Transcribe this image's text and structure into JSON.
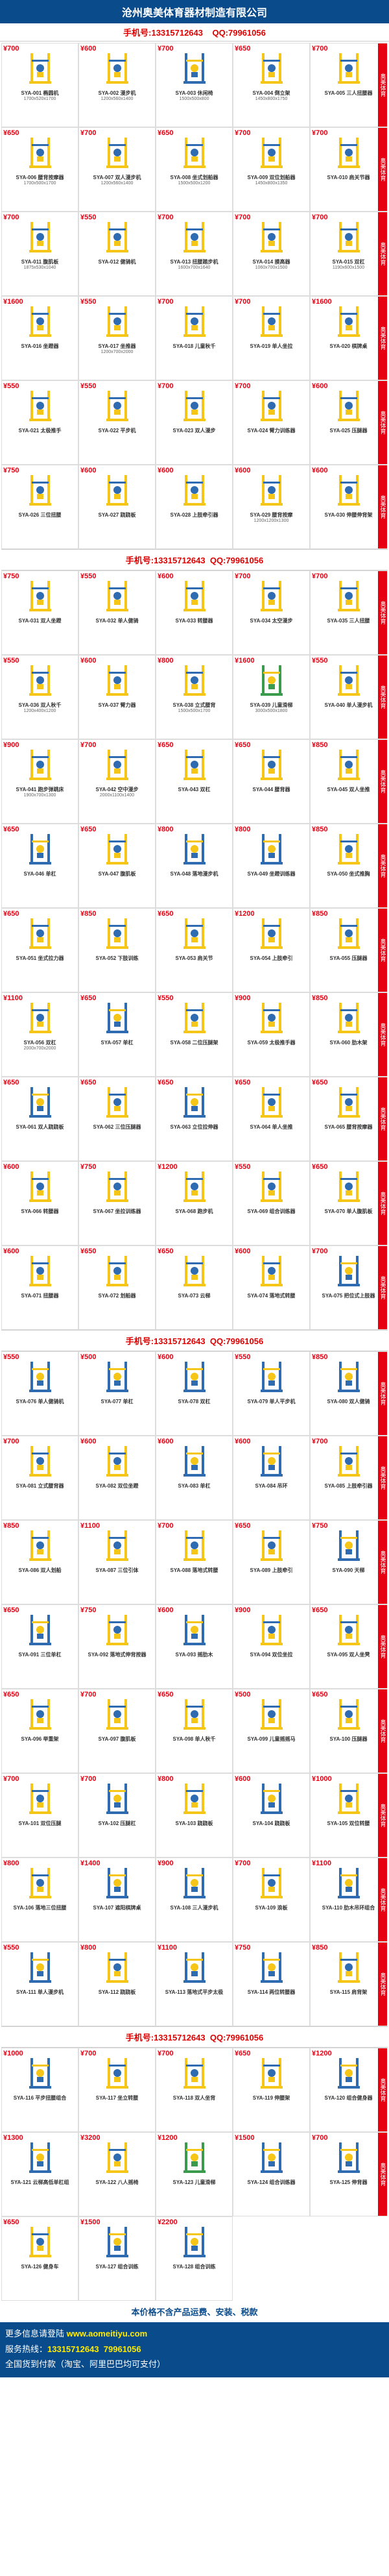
{
  "header": {
    "title": "沧州奥美体育器材制造有限公司"
  },
  "contact": {
    "phone": "13315712643",
    "qq": "79961056",
    "label_phone": "手机号:",
    "label_qq": "QQ:"
  },
  "side_label": "奥美体育",
  "colors": {
    "brand": "#0a4b8c",
    "accent": "#e60012",
    "eq_yellow": "#f5c518",
    "eq_blue": "#2e6bb0",
    "eq_green": "#3a9b4c"
  },
  "footer": {
    "note": "本价格不含产品运费、安装、税款",
    "more": "更多信息请登陆",
    "url": "www.aomeitiyu.com",
    "hotline_label": "服务热线：",
    "hotline": "13315712643",
    "qq": "79961056",
    "pay": "全国货到付款（淘宝、阿里巴巴均可支付）"
  },
  "banners": [
    0,
    30,
    75,
    115
  ],
  "products": [
    {
      "sku": "SYA-001",
      "name": "椭圆机",
      "dims": "1700x520x1700",
      "price": "¥700",
      "c": "y"
    },
    {
      "sku": "SYA-002",
      "name": "漫步机",
      "dims": "1200x560x1400",
      "price": "¥600",
      "c": "y"
    },
    {
      "sku": "SYA-003",
      "name": "休闲椅",
      "dims": "1500x500x800",
      "price": "¥700",
      "c": "b"
    },
    {
      "sku": "SYA-004",
      "name": "倒立架",
      "dims": "1450x800x1750",
      "price": "¥650",
      "c": "y"
    },
    {
      "sku": "SYA-005",
      "name": "三人扭腰器",
      "dims": "",
      "price": "¥700",
      "c": "y"
    },
    {
      "sku": "SYA-006",
      "name": "腰背按摩器",
      "dims": "1700x500x1700",
      "price": "¥650",
      "c": "y"
    },
    {
      "sku": "SYA-007",
      "name": "双人漫步机",
      "dims": "1200x560x1400",
      "price": "¥700",
      "c": "y"
    },
    {
      "sku": "SYA-008",
      "name": "坐式划船器",
      "dims": "1500x500x1200",
      "price": "¥650",
      "c": "y"
    },
    {
      "sku": "SYA-009",
      "name": "双位划船器",
      "dims": "1450x800x1350",
      "price": "¥700",
      "c": "y"
    },
    {
      "sku": "SYA-010",
      "name": "肩关节器",
      "dims": "",
      "price": "¥700",
      "c": "y"
    },
    {
      "sku": "SYA-011",
      "name": "腹肌板",
      "dims": "1875x530x1040",
      "price": "¥700",
      "c": "y"
    },
    {
      "sku": "SYA-012",
      "name": "健骑机",
      "dims": "",
      "price": "¥550",
      "c": "y"
    },
    {
      "sku": "SYA-013",
      "name": "扭腰踏步机",
      "dims": "1600x700x1640",
      "price": "¥700",
      "c": "y"
    },
    {
      "sku": "SYA-014",
      "name": "摸高器",
      "dims": "1060x700x1500",
      "price": "¥700",
      "c": "y"
    },
    {
      "sku": "SYA-015",
      "name": "双杠",
      "dims": "1190x600x1500",
      "price": "¥700",
      "c": "y"
    },
    {
      "sku": "SYA-016",
      "name": "坐蹬器",
      "dims": "",
      "price": "¥1600",
      "c": "y"
    },
    {
      "sku": "SYA-017",
      "name": "坐推器",
      "dims": "1200x700x2000",
      "price": "¥550",
      "c": "y"
    },
    {
      "sku": "SYA-018",
      "name": "儿童秋千",
      "dims": "",
      "price": "¥700",
      "c": "y"
    },
    {
      "sku": "SYA-019",
      "name": "单人坐拉",
      "dims": "",
      "price": "¥700",
      "c": "y"
    },
    {
      "sku": "SYA-020",
      "name": "棋牌桌",
      "dims": "",
      "price": "¥1600",
      "c": "y"
    },
    {
      "sku": "SYA-021",
      "name": "太极推手",
      "dims": "",
      "price": "¥550",
      "c": "y"
    },
    {
      "sku": "SYA-022",
      "name": "平步机",
      "dims": "",
      "price": "¥550",
      "c": "y"
    },
    {
      "sku": "SYA-023",
      "name": "双人漫步",
      "dims": "",
      "price": "¥700",
      "c": "y"
    },
    {
      "sku": "SYA-024",
      "name": "臂力训练器",
      "dims": "",
      "price": "¥700",
      "c": "y"
    },
    {
      "sku": "SYA-025",
      "name": "压腿器",
      "dims": "",
      "price": "¥600",
      "c": "y"
    },
    {
      "sku": "SYA-026",
      "name": "三位扭腰",
      "dims": "",
      "price": "¥750",
      "c": "y"
    },
    {
      "sku": "SYA-027",
      "name": "跷跷板",
      "dims": "",
      "price": "¥600",
      "c": "y"
    },
    {
      "sku": "SYA-028",
      "name": "上肢牵引器",
      "dims": "",
      "price": "¥600",
      "c": "y"
    },
    {
      "sku": "SYA-029",
      "name": "腰背按摩",
      "dims": "1200x1200x1300",
      "price": "¥600",
      "c": "y"
    },
    {
      "sku": "SYA-030",
      "name": "伸腰伸背架",
      "dims": "",
      "price": "¥600",
      "c": "y"
    },
    {
      "sku": "SYA-031",
      "name": "双人坐蹬",
      "dims": "",
      "price": "¥750",
      "c": "y"
    },
    {
      "sku": "SYA-032",
      "name": "单人健骑",
      "dims": "",
      "price": "¥550",
      "c": "y"
    },
    {
      "sku": "SYA-033",
      "name": "转腰器",
      "dims": "",
      "price": "¥600",
      "c": "y"
    },
    {
      "sku": "SYA-034",
      "name": "太空漫步",
      "dims": "",
      "price": "¥700",
      "c": "y"
    },
    {
      "sku": "SYA-035",
      "name": "三人扭腰",
      "dims": "",
      "price": "¥700",
      "c": "y"
    },
    {
      "sku": "SYA-036",
      "name": "双人秋千",
      "dims": "1200x400x1200",
      "price": "¥550",
      "c": "y"
    },
    {
      "sku": "SYA-037",
      "name": "臂力器",
      "dims": "",
      "price": "¥600",
      "c": "y"
    },
    {
      "sku": "SYA-038",
      "name": "立式腰背",
      "dims": "1500x500x1700",
      "price": "¥800",
      "c": "y"
    },
    {
      "sku": "SYA-039",
      "name": "儿童滑梯",
      "dims": "3000x500x1800",
      "price": "¥1600",
      "c": "g"
    },
    {
      "sku": "SYA-040",
      "name": "单人漫步机",
      "dims": "",
      "price": "¥550",
      "c": "y"
    },
    {
      "sku": "SYA-041",
      "name": "跑步弹跳床",
      "dims": "1900x700x1300",
      "price": "¥900",
      "c": "y"
    },
    {
      "sku": "SYA-042",
      "name": "空中漫步",
      "dims": "2000x1100x1400",
      "price": "¥700",
      "c": "y"
    },
    {
      "sku": "SYA-043",
      "name": "双杠",
      "dims": "",
      "price": "¥650",
      "c": "y"
    },
    {
      "sku": "SYA-044",
      "name": "腰背器",
      "dims": "",
      "price": "¥650",
      "c": "y"
    },
    {
      "sku": "SYA-045",
      "name": "双人坐推",
      "dims": "",
      "price": "¥850",
      "c": "y"
    },
    {
      "sku": "SYA-046",
      "name": "单杠",
      "dims": "",
      "price": "¥650",
      "c": "b"
    },
    {
      "sku": "SYA-047",
      "name": "腹肌板",
      "dims": "",
      "price": "¥650",
      "c": "y"
    },
    {
      "sku": "SYA-048",
      "name": "落地漫步机",
      "dims": "",
      "price": "¥800",
      "c": "b"
    },
    {
      "sku": "SYA-049",
      "name": "坐蹬训练器",
      "dims": "",
      "price": "¥800",
      "c": "b"
    },
    {
      "sku": "SYA-050",
      "name": "坐式推胸",
      "dims": "",
      "price": "¥850",
      "c": "y"
    },
    {
      "sku": "SYA-051",
      "name": "坐式拉力器",
      "dims": "",
      "price": "¥650",
      "c": "y"
    },
    {
      "sku": "SYA-052",
      "name": "下肢训练",
      "dims": "",
      "price": "¥850",
      "c": "y"
    },
    {
      "sku": "SYA-053",
      "name": "肩关节",
      "dims": "",
      "price": "¥650",
      "c": "y"
    },
    {
      "sku": "SYA-054",
      "name": "上肢牵引",
      "dims": "",
      "price": "¥1200",
      "c": "y"
    },
    {
      "sku": "SYA-055",
      "name": "压腿器",
      "dims": "",
      "price": "¥850",
      "c": "y"
    },
    {
      "sku": "SYA-056",
      "name": "双杠",
      "dims": "2000x700x2000",
      "price": "¥1100",
      "c": "y"
    },
    {
      "sku": "SYA-057",
      "name": "单杠",
      "dims": "",
      "price": "¥650",
      "c": "b"
    },
    {
      "sku": "SYA-058",
      "name": "二位压腿架",
      "dims": "",
      "price": "¥550",
      "c": "y"
    },
    {
      "sku": "SYA-059",
      "name": "太极推手器",
      "dims": "",
      "price": "¥900",
      "c": "y"
    },
    {
      "sku": "SYA-060",
      "name": "肋木架",
      "dims": "",
      "price": "¥850",
      "c": "y"
    },
    {
      "sku": "SYA-061",
      "name": "双人跷跷板",
      "dims": "",
      "price": "¥650",
      "c": "b"
    },
    {
      "sku": "SYA-062",
      "name": "三位压腿器",
      "dims": "",
      "price": "¥650",
      "c": "y"
    },
    {
      "sku": "SYA-063",
      "name": "立位拉伸器",
      "dims": "",
      "price": "¥650",
      "c": "b"
    },
    {
      "sku": "SYA-064",
      "name": "单人坐推",
      "dims": "",
      "price": "¥650",
      "c": "y"
    },
    {
      "sku": "SYA-065",
      "name": "腰背按摩器",
      "dims": "",
      "price": "¥650",
      "c": "y"
    },
    {
      "sku": "SYA-066",
      "name": "转腰器",
      "dims": "",
      "price": "¥600",
      "c": "y"
    },
    {
      "sku": "SYA-067",
      "name": "坐拉训练器",
      "dims": "",
      "price": "¥750",
      "c": "y"
    },
    {
      "sku": "SYA-068",
      "name": "跑步机",
      "dims": "",
      "price": "¥1200",
      "c": "y"
    },
    {
      "sku": "SYA-069",
      "name": "组合训练器",
      "dims": "",
      "price": "¥550",
      "c": "y"
    },
    {
      "sku": "SYA-070",
      "name": "单人腹肌板",
      "dims": "",
      "price": "¥650",
      "c": "y"
    },
    {
      "sku": "SYA-071",
      "name": "扭腰器",
      "dims": "",
      "price": "¥600",
      "c": "y"
    },
    {
      "sku": "SYA-072",
      "name": "划船器",
      "dims": "",
      "price": "¥650",
      "c": "y"
    },
    {
      "sku": "SYA-073",
      "name": "云梯",
      "dims": "",
      "price": "¥650",
      "c": "y"
    },
    {
      "sku": "SYA-074",
      "name": "落地式转腰",
      "dims": "",
      "price": "¥600",
      "c": "y"
    },
    {
      "sku": "SYA-075",
      "name": "把位式上肢器",
      "dims": "",
      "price": "¥700",
      "c": "b"
    },
    {
      "sku": "SYA-076",
      "name": "单人健骑机",
      "dims": "",
      "price": "¥550",
      "c": "b"
    },
    {
      "sku": "SYA-077",
      "name": "单杠",
      "dims": "",
      "price": "¥500",
      "c": "b"
    },
    {
      "sku": "SYA-078",
      "name": "双杠",
      "dims": "",
      "price": "¥600",
      "c": "b"
    },
    {
      "sku": "SYA-079",
      "name": "单人平步机",
      "dims": "",
      "price": "¥550",
      "c": "b"
    },
    {
      "sku": "SYA-080",
      "name": "双人健骑",
      "dims": "",
      "price": "¥850",
      "c": "b"
    },
    {
      "sku": "SYA-081",
      "name": "立式腰背器",
      "dims": "",
      "price": "¥700",
      "c": "y"
    },
    {
      "sku": "SYA-082",
      "name": "双位坐蹬",
      "dims": "",
      "price": "¥600",
      "c": "y"
    },
    {
      "sku": "SYA-083",
      "name": "单杠",
      "dims": "",
      "price": "¥600",
      "c": "b"
    },
    {
      "sku": "SYA-084",
      "name": "吊环",
      "dims": "",
      "price": "¥600",
      "c": "b"
    },
    {
      "sku": "SYA-085",
      "name": "上肢牵引器",
      "dims": "",
      "price": "¥700",
      "c": "y"
    },
    {
      "sku": "SYA-086",
      "name": "双人划船",
      "dims": "",
      "price": "¥850",
      "c": "y"
    },
    {
      "sku": "SYA-087",
      "name": "三位引体",
      "dims": "",
      "price": "¥1100",
      "c": "y"
    },
    {
      "sku": "SYA-088",
      "name": "落地式转腰",
      "dims": "",
      "price": "¥700",
      "c": "y"
    },
    {
      "sku": "SYA-089",
      "name": "上肢牵引",
      "dims": "",
      "price": "¥650",
      "c": "y"
    },
    {
      "sku": "SYA-090",
      "name": "天梯",
      "dims": "",
      "price": "¥750",
      "c": "b"
    },
    {
      "sku": "SYA-091",
      "name": "三位单杠",
      "dims": "",
      "price": "¥650",
      "c": "b"
    },
    {
      "sku": "SYA-092",
      "name": "落地式伸背按器",
      "dims": "",
      "price": "¥750",
      "c": "y"
    },
    {
      "sku": "SYA-093",
      "name": "摇肋木",
      "dims": "",
      "price": "¥600",
      "c": "b"
    },
    {
      "sku": "SYA-094",
      "name": "双位坐拉",
      "dims": "",
      "price": "¥900",
      "c": "y"
    },
    {
      "sku": "SYA-095",
      "name": "双人坐凳",
      "dims": "",
      "price": "¥650",
      "c": "y"
    },
    {
      "sku": "SYA-096",
      "name": "举重架",
      "dims": "",
      "price": "¥650",
      "c": "y"
    },
    {
      "sku": "SYA-097",
      "name": "腹肌板",
      "dims": "",
      "price": "¥700",
      "c": "y"
    },
    {
      "sku": "SYA-098",
      "name": "单人秋千",
      "dims": "",
      "price": "¥650",
      "c": "y"
    },
    {
      "sku": "SYA-099",
      "name": "儿童摇摇马",
      "dims": "",
      "price": "¥500",
      "c": "y"
    },
    {
      "sku": "SYA-100",
      "name": "压腿器",
      "dims": "",
      "price": "¥650",
      "c": "y"
    },
    {
      "sku": "SYA-101",
      "name": "双位压腿",
      "dims": "",
      "price": "¥700",
      "c": "y"
    },
    {
      "sku": "SYA-102",
      "name": "压腿杠",
      "dims": "",
      "price": "¥700",
      "c": "b"
    },
    {
      "sku": "SYA-103",
      "name": "跷跷板",
      "dims": "",
      "price": "¥800",
      "c": "y"
    },
    {
      "sku": "SYA-104",
      "name": "跷跷板",
      "dims": "",
      "price": "¥600",
      "c": "b"
    },
    {
      "sku": "SYA-105",
      "name": "双位转腰",
      "dims": "",
      "price": "¥1000",
      "c": "y"
    },
    {
      "sku": "SYA-106",
      "name": "落地三位扭腰",
      "dims": "",
      "price": "¥800",
      "c": "y"
    },
    {
      "sku": "SYA-107",
      "name": "遮阳棋牌桌",
      "dims": "",
      "price": "¥1400",
      "c": "b"
    },
    {
      "sku": "SYA-108",
      "name": "三人漫步机",
      "dims": "",
      "price": "¥900",
      "c": "b"
    },
    {
      "sku": "SYA-109",
      "name": "浪板",
      "dims": "",
      "price": "¥700",
      "c": "y"
    },
    {
      "sku": "SYA-110",
      "name": "肋木吊环组合",
      "dims": "",
      "price": "¥1100",
      "c": "b"
    },
    {
      "sku": "SYA-111",
      "name": "单人漫步机",
      "dims": "",
      "price": "¥550",
      "c": "b"
    },
    {
      "sku": "SYA-112",
      "name": "跷跷板",
      "dims": "",
      "price": "¥800",
      "c": "y"
    },
    {
      "sku": "SYA-113",
      "name": "落地式平步太极",
      "dims": "",
      "price": "¥1100",
      "c": "b"
    },
    {
      "sku": "SYA-114",
      "name": "两位转腰器",
      "dims": "",
      "price": "¥750",
      "c": "b"
    },
    {
      "sku": "SYA-115",
      "name": "肩背架",
      "dims": "",
      "price": "¥850",
      "c": "y"
    },
    {
      "sku": "SYA-116",
      "name": "平步扭腰组合",
      "dims": "",
      "price": "¥1000",
      "c": "b"
    },
    {
      "sku": "SYA-117",
      "name": "坐立转腰",
      "dims": "",
      "price": "¥700",
      "c": "y"
    },
    {
      "sku": "SYA-118",
      "name": "双人坐背",
      "dims": "",
      "price": "¥700",
      "c": "y"
    },
    {
      "sku": "SYA-119",
      "name": "伸腰架",
      "dims": "",
      "price": "¥650",
      "c": "y"
    },
    {
      "sku": "SYA-120",
      "name": "组合健身器",
      "dims": "",
      "price": "¥1200",
      "c": "b"
    },
    {
      "sku": "SYA-121",
      "name": "云梯高低单杠组",
      "dims": "",
      "price": "¥1300",
      "c": "b"
    },
    {
      "sku": "SYA-122",
      "name": "八人摇椅",
      "dims": "",
      "price": "¥3200",
      "c": "y"
    },
    {
      "sku": "SYA-123",
      "name": "儿童滑梯",
      "dims": "",
      "price": "¥1200",
      "c": "g"
    },
    {
      "sku": "SYA-124",
      "name": "组合训练器",
      "dims": "",
      "price": "¥1500",
      "c": "b"
    },
    {
      "sku": "SYA-125",
      "name": "伸背器",
      "dims": "",
      "price": "¥700",
      "c": "b"
    },
    {
      "sku": "SYA-126",
      "name": "健身车",
      "dims": "",
      "price": "¥650",
      "c": "y"
    },
    {
      "sku": "SYA-127",
      "name": "组合训练",
      "dims": "",
      "price": "¥1500",
      "c": "b"
    },
    {
      "sku": "SYA-128",
      "name": "组合训练",
      "dims": "",
      "price": "¥2200",
      "c": "b"
    }
  ]
}
